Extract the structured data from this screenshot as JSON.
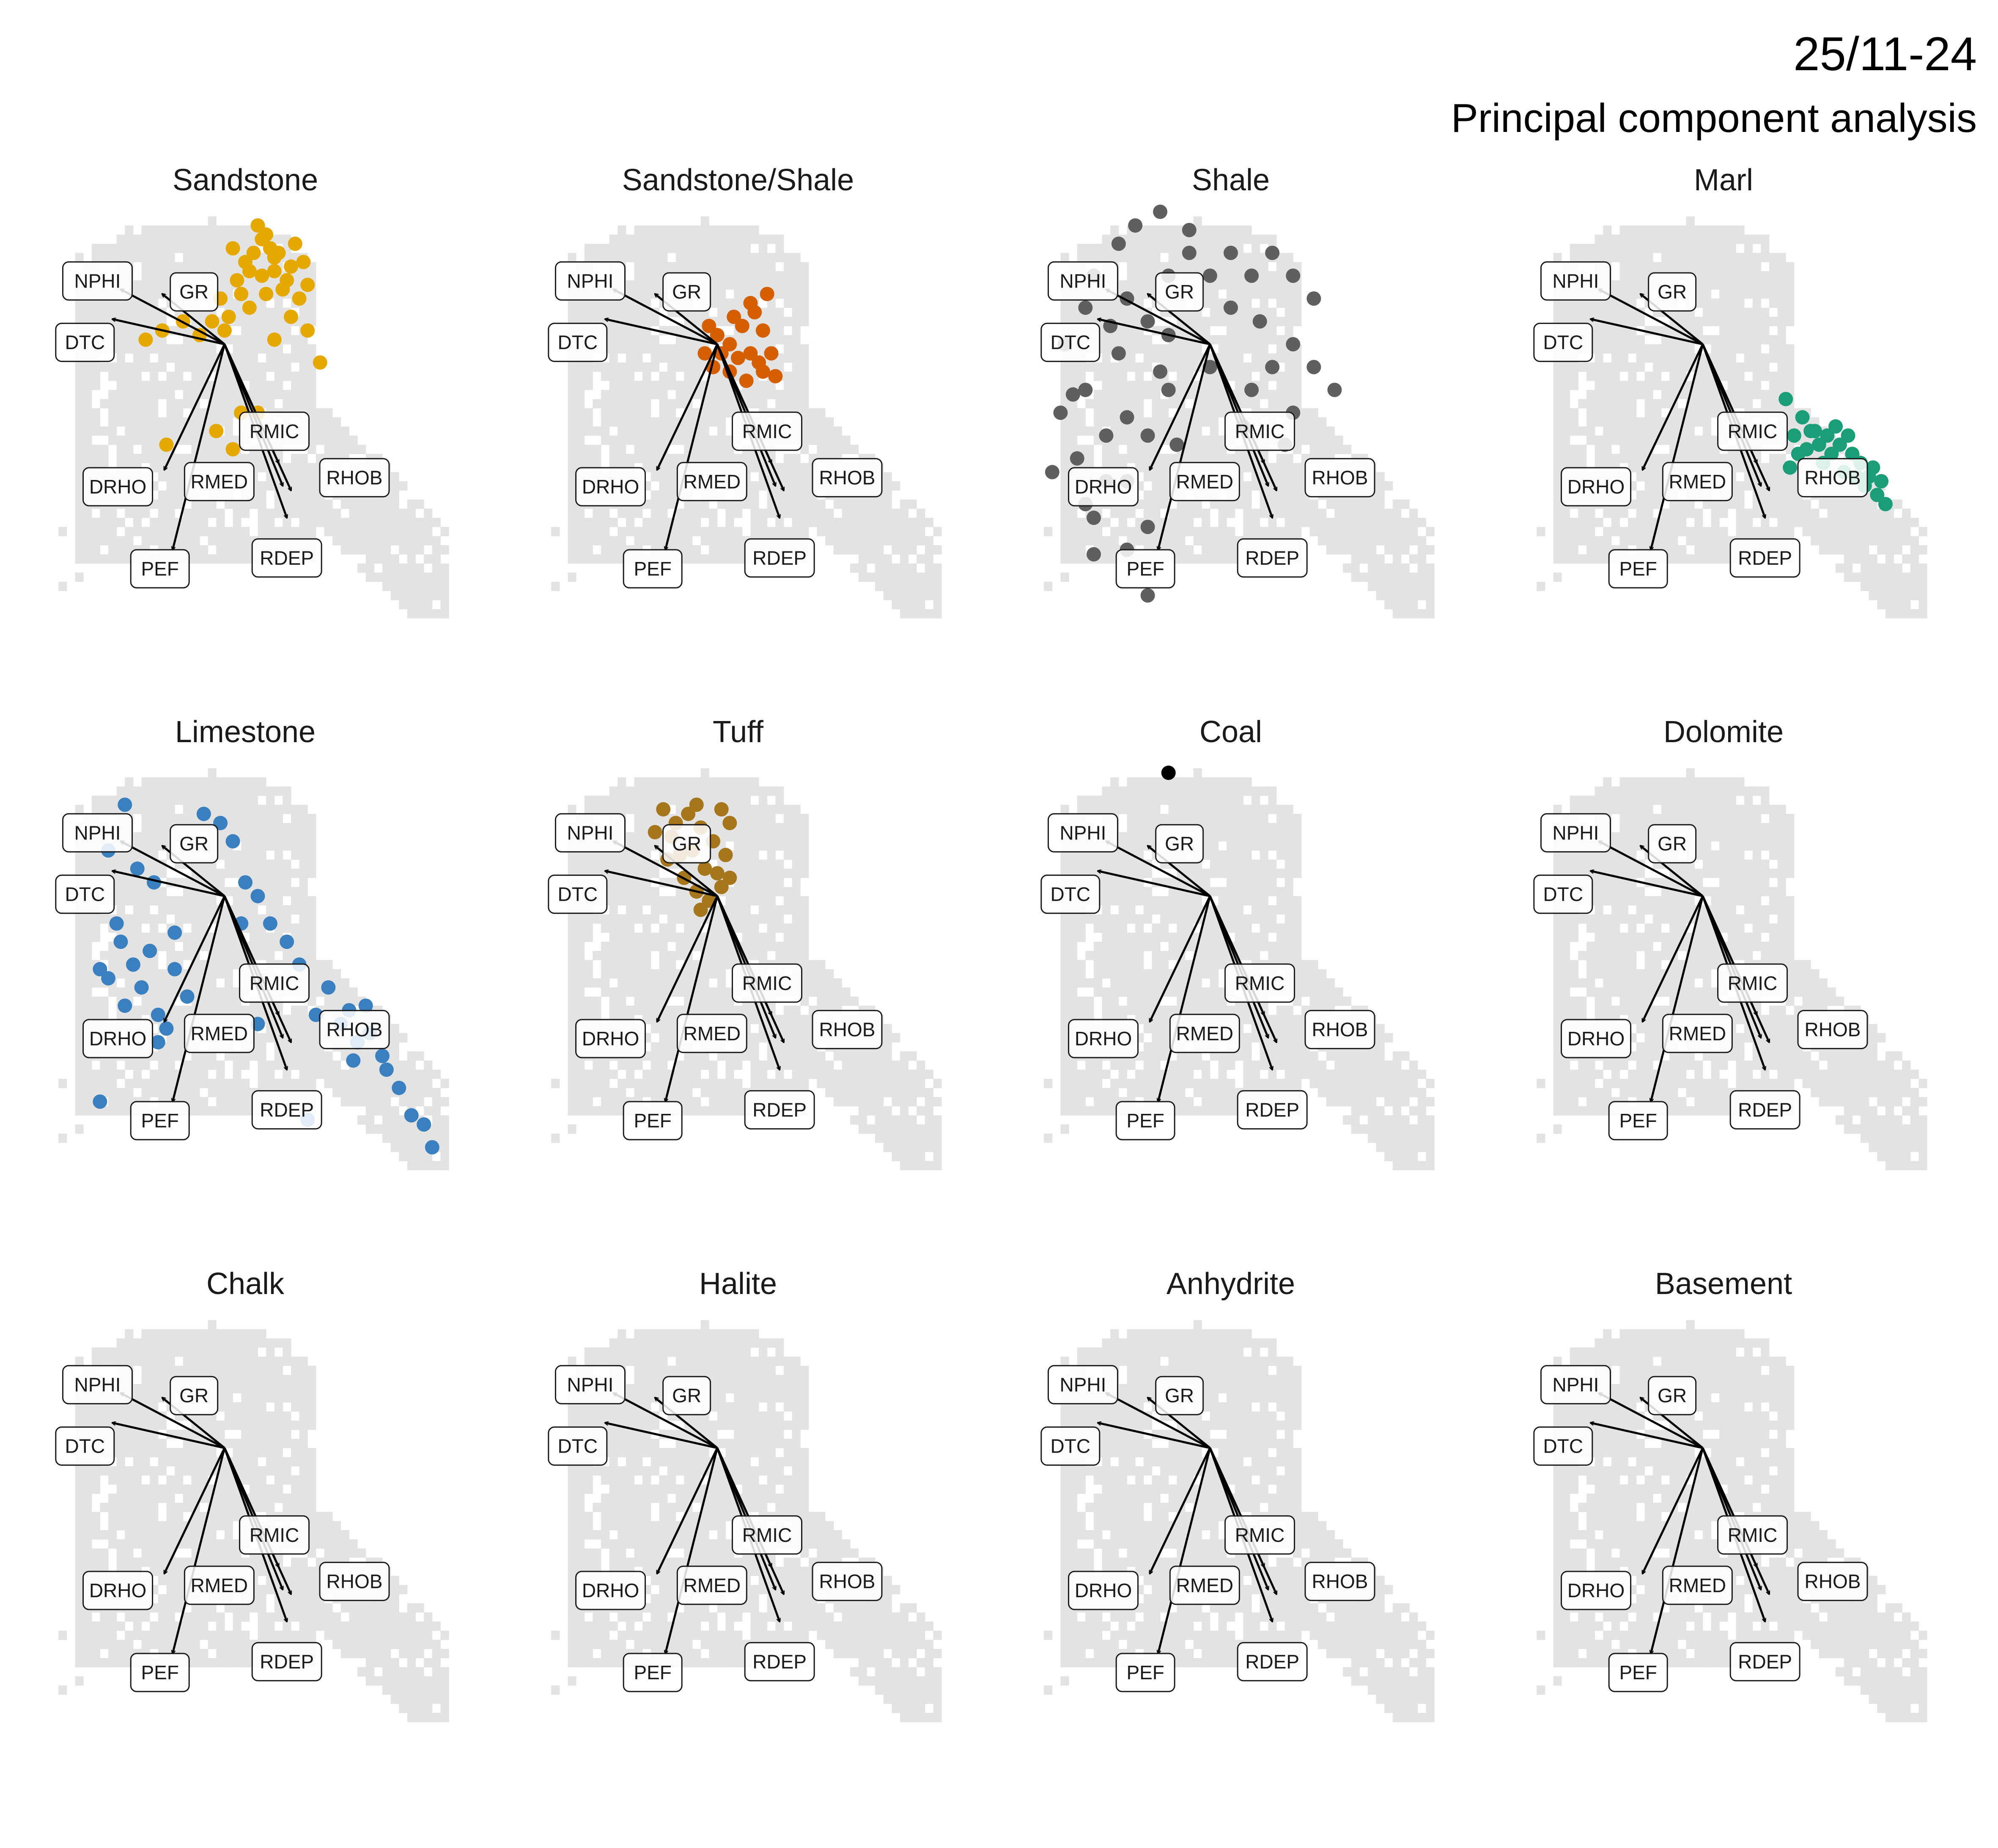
{
  "header": {
    "date": "25/11-24",
    "title": "Principal component analysis"
  },
  "colors": {
    "background_cells": "#e3e3e3",
    "arrows": "#000000",
    "label_box_fill": "#ffffff",
    "label_box_stroke": "#1a1a1a"
  },
  "chart_data": {
    "type": "scatter",
    "title": "Principal component analysis",
    "xlabel": "",
    "ylabel": "",
    "xlim": [
      -5,
      6
    ],
    "ylim": [
      -7,
      3
    ],
    "grid": false,
    "legend": "none",
    "facets": [
      "Sandstone",
      "Sandstone/Shale",
      "Shale",
      "Marl",
      "Limestone",
      "Tuff",
      "Coal",
      "Dolomite",
      "Chalk",
      "Halite",
      "Anhydrite",
      "Basement"
    ],
    "loadings": [
      {
        "name": "NPHI",
        "x": -2.5,
        "y": 1.2
      },
      {
        "name": "GR",
        "x": -1.5,
        "y": 1.1
      },
      {
        "name": "DTC",
        "x": -2.7,
        "y": 0.55
      },
      {
        "name": "DRHO",
        "x": -1.45,
        "y": -2.75
      },
      {
        "name": "PEF",
        "x": -1.25,
        "y": -4.5
      },
      {
        "name": "RMIC",
        "x": 1.3,
        "y": -2.6
      },
      {
        "name": "RMED",
        "x": 1.4,
        "y": -3.1
      },
      {
        "name": "RHOB",
        "x": 1.6,
        "y": -3.2
      },
      {
        "name": "RDEP",
        "x": 1.5,
        "y": -3.8
      }
    ],
    "series": [
      {
        "name": "Sandstone",
        "color": "#E5A800",
        "points": [
          [
            0.6,
            1.6
          ],
          [
            0.2,
            2.1
          ],
          [
            0.8,
            2.6
          ],
          [
            1.0,
            2.4
          ],
          [
            1.3,
            2.0
          ],
          [
            0.5,
            1.8
          ],
          [
            0.9,
            1.5
          ],
          [
            1.2,
            1.6
          ],
          [
            1.5,
            1.4
          ],
          [
            1.7,
            2.2
          ],
          [
            1.9,
            1.8
          ],
          [
            2.0,
            1.3
          ],
          [
            0.4,
            1.1
          ],
          [
            0.6,
            0.8
          ],
          [
            0.1,
            0.6
          ],
          [
            -0.3,
            0.5
          ],
          [
            -0.6,
            0.2
          ],
          [
            -1.0,
            0.5
          ],
          [
            -1.5,
            0.3
          ],
          [
            -1.9,
            0.1
          ],
          [
            1.6,
            0.6
          ],
          [
            2.0,
            0.3
          ],
          [
            2.3,
            -0.4
          ],
          [
            0.4,
            -1.5
          ],
          [
            0.2,
            -2.3
          ],
          [
            -0.2,
            -1.9
          ],
          [
            -1.4,
            -2.2
          ],
          [
            0.8,
            -1.5
          ],
          [
            1.2,
            0.1
          ],
          [
            1.0,
            1.1
          ],
          [
            0.3,
            1.4
          ],
          [
            1.8,
            1.0
          ],
          [
            1.1,
            2.1
          ],
          [
            0.7,
            2.0
          ],
          [
            1.4,
            1.2
          ],
          [
            1.6,
            1.7
          ],
          [
            0.9,
            2.3
          ],
          [
            -0.1,
            1.0
          ],
          [
            0.0,
            0.3
          ],
          [
            1.2,
            1.9
          ]
        ]
      },
      {
        "name": "Sandstone/Shale",
        "color": "#D55E00",
        "points": [
          [
            -0.2,
            0.4
          ],
          [
            0.0,
            0.2
          ],
          [
            0.3,
            0.0
          ],
          [
            0.6,
            0.4
          ],
          [
            0.9,
            0.7
          ],
          [
            1.1,
            0.3
          ],
          [
            0.8,
            -0.2
          ],
          [
            1.1,
            -0.6
          ],
          [
            1.4,
            -0.7
          ],
          [
            0.7,
            -0.8
          ],
          [
            0.3,
            -0.6
          ],
          [
            -0.1,
            -0.5
          ],
          [
            0.1,
            -0.2
          ],
          [
            0.4,
            0.6
          ],
          [
            0.8,
            0.9
          ],
          [
            1.2,
            1.1
          ],
          [
            0.5,
            -0.3
          ],
          [
            -0.3,
            -0.2
          ],
          [
            1.0,
            -0.4
          ],
          [
            1.3,
            -0.2
          ]
        ]
      },
      {
        "name": "Shale",
        "color": "#5f5f5f",
        "points": [
          [
            -3,
            -1
          ],
          [
            -2.5,
            -2
          ],
          [
            -2,
            -3
          ],
          [
            -1.5,
            -4
          ],
          [
            -3.5,
            0
          ],
          [
            -2.8,
            1.5
          ],
          [
            -2,
            1.0
          ],
          [
            -1.5,
            0.5
          ],
          [
            -1,
            1.5
          ],
          [
            -0.5,
            2
          ],
          [
            0,
            1.5
          ],
          [
            0.5,
            2
          ],
          [
            1,
            1.5
          ],
          [
            1.5,
            2
          ],
          [
            2,
            1.5
          ],
          [
            2.5,
            1
          ],
          [
            2,
            0
          ],
          [
            1.5,
            -0.5
          ],
          [
            2.5,
            -0.5
          ],
          [
            3,
            -1
          ],
          [
            2,
            -1.5
          ],
          [
            1,
            -1
          ],
          [
            0,
            -0.5
          ],
          [
            -1,
            -1
          ],
          [
            -1.5,
            -2
          ],
          [
            -2.5,
            -3
          ],
          [
            -3,
            -3.5
          ],
          [
            -2,
            -4.5
          ],
          [
            -1.5,
            -5.5
          ],
          [
            -2.8,
            -3.8
          ],
          [
            -3.2,
            -2.5
          ],
          [
            -3.6,
            -1.5
          ],
          [
            -2.2,
            -0.2
          ],
          [
            -1.2,
            -0.6
          ],
          [
            0.5,
            0.8
          ],
          [
            1.2,
            0.5
          ],
          [
            -0.5,
            2.5
          ],
          [
            -1.8,
            2.6
          ],
          [
            -1.2,
            2.9
          ],
          [
            -2.2,
            2.2
          ],
          [
            -0.8,
            -2.2
          ],
          [
            -2.0,
            -1.6
          ],
          [
            0.8,
            -1.8
          ],
          [
            1.8,
            -2.2
          ],
          [
            -3.0,
            0.8
          ],
          [
            -2.4,
            0.4
          ],
          [
            -3.8,
            -2.8
          ],
          [
            -2.8,
            -4.6
          ],
          [
            -3.3,
            -1.1
          ],
          [
            -1.0,
            0.2
          ]
        ]
      },
      {
        "name": "Marl",
        "color": "#1B9E77",
        "points": [
          [
            2.0,
            -1.2
          ],
          [
            2.4,
            -1.6
          ],
          [
            2.7,
            -1.9
          ],
          [
            3.0,
            -2.0
          ],
          [
            3.3,
            -2.2
          ],
          [
            3.6,
            -2.4
          ],
          [
            3.8,
            -2.6
          ],
          [
            4.0,
            -2.9
          ],
          [
            4.2,
            -3.3
          ],
          [
            4.4,
            -3.5
          ],
          [
            3.1,
            -2.4
          ],
          [
            2.8,
            -2.2
          ],
          [
            2.5,
            -2.3
          ],
          [
            3.4,
            -2.8
          ],
          [
            3.9,
            -3.1
          ],
          [
            2.2,
            -2.0
          ],
          [
            2.9,
            -2.6
          ],
          [
            3.5,
            -2.0
          ],
          [
            4.1,
            -2.7
          ],
          [
            2.6,
            -1.9
          ],
          [
            4.3,
            -3.0
          ],
          [
            3.7,
            -2.9
          ],
          [
            2.3,
            -2.4
          ],
          [
            2.1,
            -2.7
          ],
          [
            3.2,
            -1.8
          ]
        ]
      },
      {
        "name": "Limestone",
        "color": "#3A7FBF",
        "points": [
          [
            -2.5,
            -1
          ],
          [
            -2.2,
            -1.5
          ],
          [
            -2.8,
            -1.8
          ],
          [
            -2.0,
            -2.0
          ],
          [
            -1.8,
            -1.2
          ],
          [
            -2.4,
            -2.4
          ],
          [
            -1.6,
            -2.6
          ],
          [
            -1.2,
            -1.6
          ],
          [
            -2.6,
            -0.6
          ],
          [
            -3.0,
            -1.6
          ],
          [
            -2.1,
            0.6
          ],
          [
            -1.7,
            0.3
          ],
          [
            -1.2,
            -0.8
          ],
          [
            -0.5,
            1.8
          ],
          [
            -0.1,
            1.6
          ],
          [
            0.2,
            1.2
          ],
          [
            0.5,
            0.3
          ],
          [
            0.8,
            0.0
          ],
          [
            1.1,
            -0.6
          ],
          [
            0.4,
            -0.6
          ],
          [
            1.5,
            -1.0
          ],
          [
            1.8,
            -1.5
          ],
          [
            2.5,
            -2.0
          ],
          [
            3.0,
            -2.5
          ],
          [
            3.5,
            -3.0
          ],
          [
            3.8,
            -3.5
          ],
          [
            4.2,
            -4.2
          ],
          [
            4.5,
            -4.8
          ],
          [
            5.0,
            -5.5
          ],
          [
            2.8,
            -2.8
          ],
          [
            3.2,
            -3.2
          ],
          [
            2.2,
            -2.6
          ],
          [
            0.8,
            -2.8
          ],
          [
            -1.6,
            -3.2
          ],
          [
            -3.0,
            -4.5
          ],
          [
            2.0,
            -4.9
          ],
          [
            -2.4,
            2.0
          ],
          [
            -2.8,
            1.0
          ],
          [
            3.4,
            -2.4
          ],
          [
            3.9,
            -3.8
          ],
          [
            -0.9,
            -2.2
          ],
          [
            -1.4,
            -2.9
          ],
          [
            4.8,
            -5.0
          ],
          [
            3.1,
            -3.6
          ]
        ]
      },
      {
        "name": "Tuff",
        "color": "#A6761D",
        "points": [
          [
            -1.0,
            1.6
          ],
          [
            -0.7,
            1.8
          ],
          [
            -0.4,
            1.5
          ],
          [
            -0.1,
            1.2
          ],
          [
            0.2,
            0.9
          ],
          [
            0.0,
            0.5
          ],
          [
            -0.3,
            0.6
          ],
          [
            -0.6,
            1.0
          ],
          [
            -1.1,
            1.3
          ],
          [
            -1.5,
            1.4
          ],
          [
            -1.2,
            0.8
          ],
          [
            -0.8,
            0.4
          ],
          [
            -0.5,
            0.1
          ],
          [
            -0.2,
            -0.1
          ],
          [
            0.1,
            0.2
          ],
          [
            0.3,
            1.6
          ],
          [
            0.1,
            1.9
          ],
          [
            -0.5,
            2.0
          ],
          [
            -1.3,
            1.9
          ],
          [
            0.3,
            0.4
          ],
          [
            -0.9,
            0.9
          ],
          [
            -0.4,
            -0.3
          ]
        ]
      },
      {
        "name": "Coal",
        "color": "#000000",
        "points": [
          [
            -1.0,
            2.7
          ]
        ]
      },
      {
        "name": "Dolomite",
        "color": "#666666",
        "points": []
      },
      {
        "name": "Chalk",
        "color": "#666666",
        "points": []
      },
      {
        "name": "Halite",
        "color": "#666666",
        "points": []
      },
      {
        "name": "Anhydrite",
        "color": "#666666",
        "points": []
      },
      {
        "name": "Basement",
        "color": "#666666",
        "points": []
      }
    ]
  }
}
